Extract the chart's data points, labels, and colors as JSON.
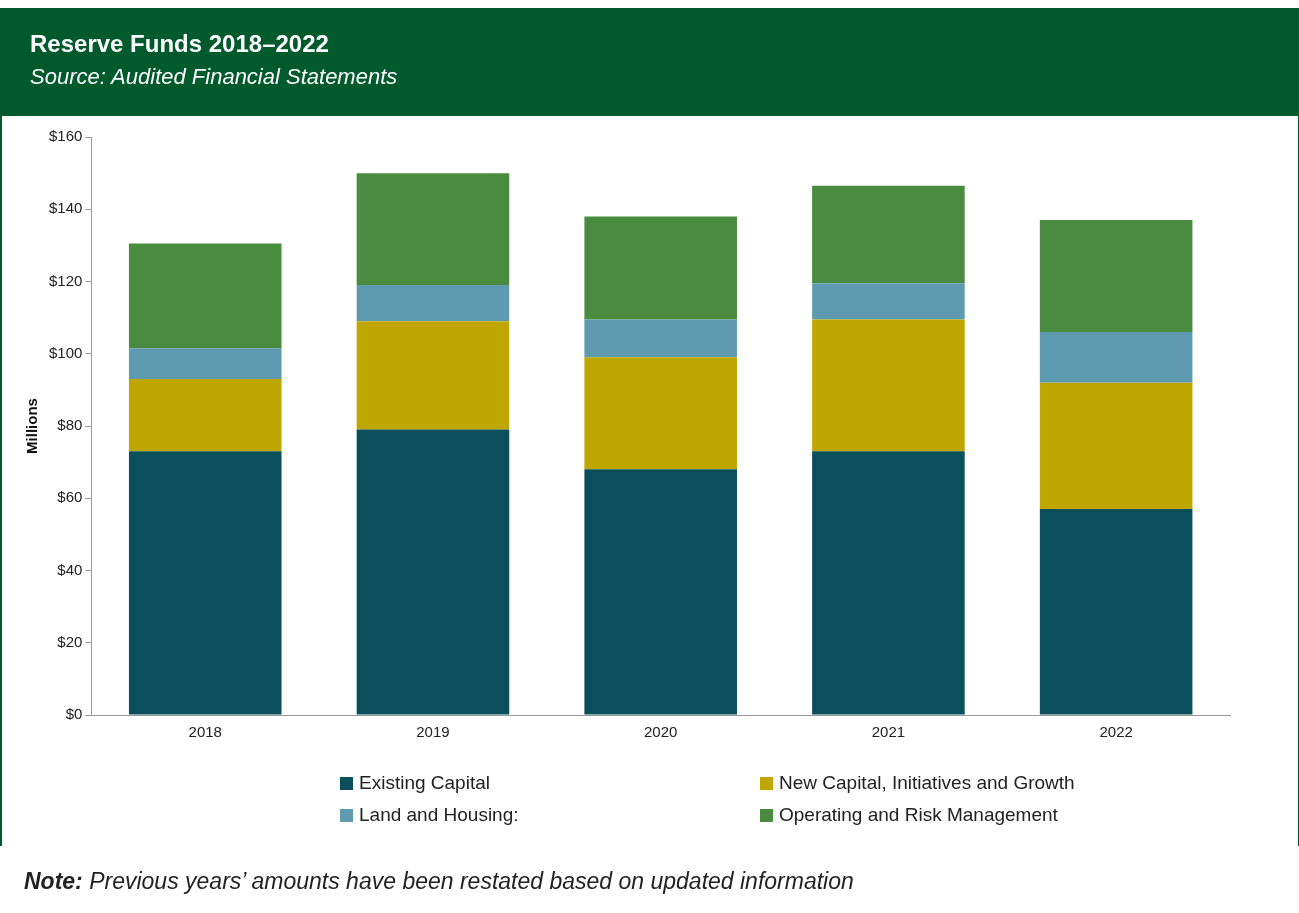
{
  "chart_data": {
    "type": "bar",
    "title": "Reserve Funds 2018–2022",
    "subtitle": "Source: Audited Financial Statements",
    "ylabel": "Millions",
    "categories": [
      "2018",
      "2019",
      "2020",
      "2021",
      "2022"
    ],
    "series": [
      {
        "name": "Existing Capital",
        "color": "#0b4f5c",
        "values": [
          73,
          79,
          68,
          73,
          57
        ]
      },
      {
        "name": "New Capital, Initiatives and Growth",
        "color": "#bfa600",
        "values": [
          20,
          30,
          31,
          36.5,
          35
        ]
      },
      {
        "name": "Land and Housing:",
        "color": "#5f9bb0",
        "values": [
          8.5,
          10,
          10.5,
          10,
          14
        ]
      },
      {
        "name": "Operating and Risk Management",
        "color": "#4a8c3f",
        "values": [
          29,
          31,
          28.5,
          27,
          31
        ]
      }
    ],
    "stacked": true,
    "ylim": [
      0,
      160
    ],
    "yticks": [
      {
        "value": 0,
        "label": "$0"
      },
      {
        "value": 20,
        "label": "$20"
      },
      {
        "value": 40,
        "label": "$40"
      },
      {
        "value": 60,
        "label": "$60"
      },
      {
        "value": 80,
        "label": "$80"
      },
      {
        "value": 100,
        "label": "$100"
      },
      {
        "value": 120,
        "label": "$120"
      },
      {
        "value": 140,
        "label": "$140"
      },
      {
        "value": 160,
        "label": "$160"
      }
    ],
    "grid": false,
    "legend": "bottom",
    "annotations": [
      "Note: Previous years’ amounts have been restated based on updated information"
    ]
  }
}
